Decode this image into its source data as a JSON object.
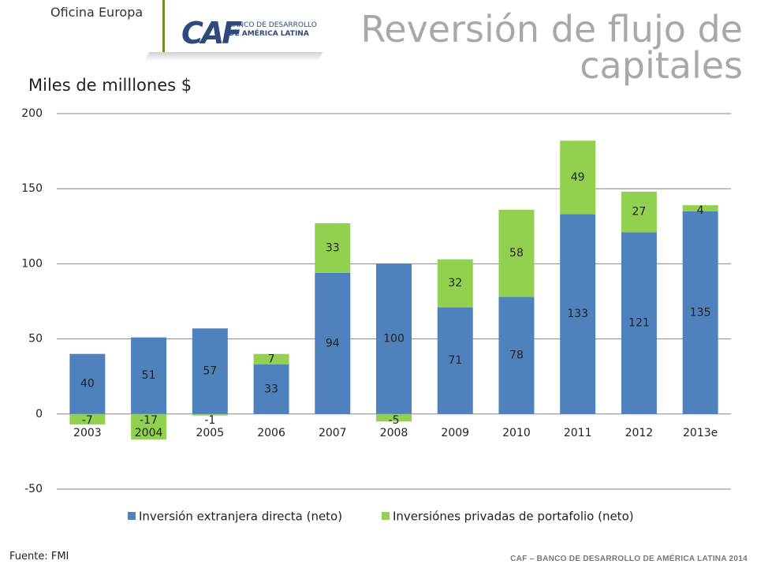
{
  "header": {
    "office": "Oficina Europa",
    "logo": {
      "mark": "CAF",
      "line1": "BANCO DE DESARROLLO",
      "line2": "DE AMÉRICA LATINA"
    },
    "title_line1": "Reversión de flujo de",
    "title_line2": "capitales"
  },
  "colors": {
    "fdi": "#4f81bd",
    "portfolio": "#92d050",
    "grid": "#868686"
  },
  "chart_data": {
    "type": "bar",
    "stacked": true,
    "ylabel": "Miles de milllones $",
    "ylim": [
      -50,
      200
    ],
    "yticks": [
      -50,
      0,
      50,
      100,
      150,
      200
    ],
    "grid": true,
    "legend_position": "bottom",
    "categories": [
      "2003",
      "2004",
      "2005",
      "2006",
      "2007",
      "2008",
      "2009",
      "2010",
      "2011",
      "2012",
      "2013e"
    ],
    "series": [
      {
        "name": "Inversión extranjera directa (neto)",
        "values": [
          40,
          51,
          57,
          33,
          94,
          100,
          71,
          78,
          133,
          121,
          135
        ]
      },
      {
        "name": "Inversiónes privadas de portafolio (neto)",
        "values": [
          -7,
          -17,
          -1,
          7,
          33,
          -5,
          32,
          58,
          49,
          27,
          4
        ]
      }
    ]
  },
  "footer": {
    "source": "Fuente: FMI",
    "credit": "CAF – BANCO DE DESARROLLO DE AMÉRICA LATINA 2014"
  }
}
